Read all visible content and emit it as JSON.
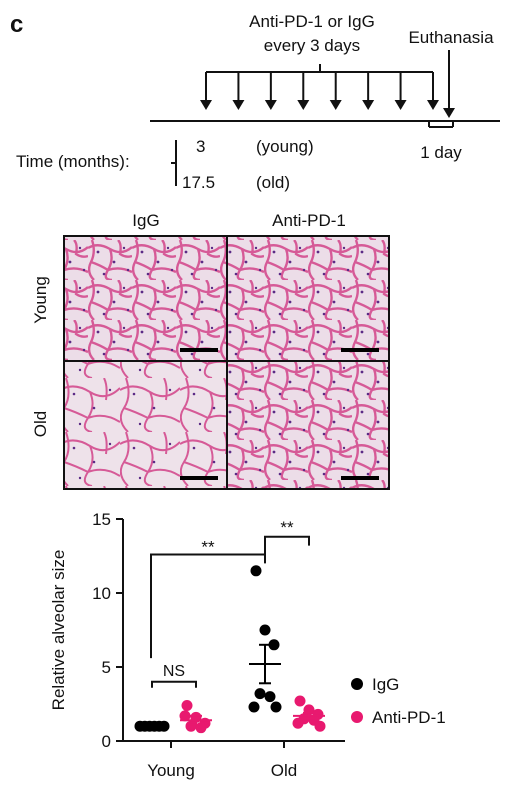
{
  "panel_letter": "c",
  "timeline": {
    "treatment_label_line1": "Anti-PD-1 or IgG",
    "treatment_label_line2": "every 3 days",
    "euthanasia_label": "Euthanasia",
    "interval_label": "1 day",
    "time_label": "Time (months):",
    "age_young_value": "3",
    "age_young_label": "(young)",
    "age_old_value": "17.5",
    "age_old_label": "(old)",
    "dose_count": 8
  },
  "histology": {
    "column_labels": [
      "IgG",
      "Anti-PD-1"
    ],
    "row_labels": [
      "Young",
      "Old"
    ],
    "tissue_color": "#d9609a",
    "background_color": "#eadfe8"
  },
  "chart_data": {
    "type": "scatter",
    "ylabel": "Relative alveolar size",
    "ylim": [
      0,
      15
    ],
    "yticks": [
      0,
      5,
      10,
      15
    ],
    "categories": [
      "Young",
      "Old"
    ],
    "series": [
      {
        "name": "IgG",
        "color": "#000000",
        "points": {
          "Young": [
            1.0,
            1.0,
            1.0,
            1.0,
            1.0,
            1.0
          ],
          "Old": [
            11.5,
            7.5,
            6.5,
            3.2,
            3.0,
            2.3,
            2.3
          ]
        },
        "mean": {
          "Young": 1.0,
          "Old": 5.2
        },
        "sem": {
          "Young": 0.05,
          "Old": 1.3
        }
      },
      {
        "name": "Anti-PD-1",
        "color": "#e8196f",
        "points": {
          "Young": [
            2.4,
            1.6,
            1.2,
            1.0,
            0.9,
            1.7
          ],
          "Old": [
            2.7,
            2.1,
            1.8,
            1.5,
            1.4,
            1.2,
            1.0
          ]
        },
        "mean": {
          "Young": 1.4,
          "Old": 1.7
        },
        "sem": {
          "Young": 0.3,
          "Old": 0.2
        }
      }
    ],
    "significance": [
      {
        "label": "NS",
        "between": "Young IgG vs Young Anti-PD-1"
      },
      {
        "label": "**",
        "between": "Young IgG vs Old IgG"
      },
      {
        "label": "**",
        "between": "Old IgG vs Old Anti-PD-1"
      }
    ]
  }
}
